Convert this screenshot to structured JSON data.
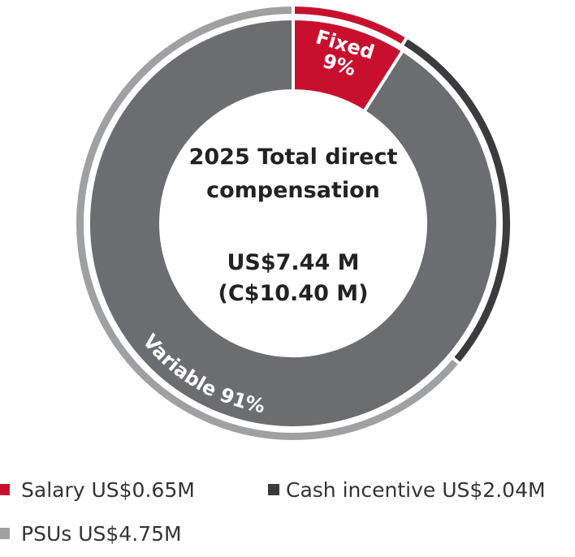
{
  "chart_data": [
    {
      "type": "donut",
      "title": "2025 Total direct compensation",
      "annotations": [
        "US$7.44 M",
        "(C$10.40 M)"
      ],
      "categories": [
        "Salary",
        "Cash incentive",
        "PSUs"
      ],
      "values": [
        0.65,
        2.04,
        4.75
      ],
      "value_labels": [
        "US$0.65M",
        "US$2.04M",
        "US$4.75M"
      ],
      "colors": [
        "#c8102e",
        "#3b3b3d",
        "#9fa0a2"
      ]
    },
    {
      "type": "donut",
      "categories": [
        "Fixed",
        "Variable"
      ],
      "values": [
        9,
        91
      ],
      "value_labels": [
        "9%",
        "91%"
      ],
      "colors": [
        "#c8102e",
        "#6c6d70"
      ]
    }
  ]
}
